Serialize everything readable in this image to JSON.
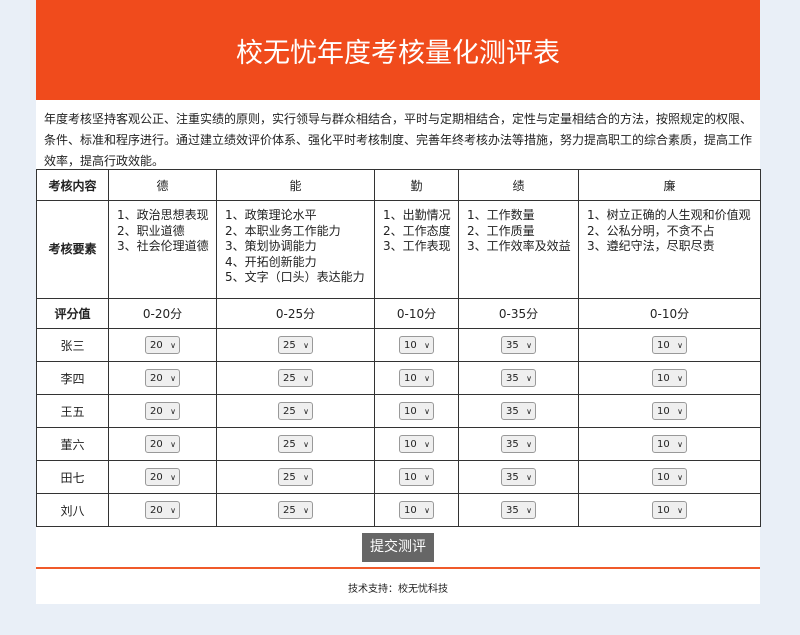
{
  "header": {
    "title": "校无忧年度考核量化测评表"
  },
  "intro": "年度考核坚持客观公正、注重实绩的原则，实行领导与群众相结合，平时与定期相结合，定性与定量相结合的方法，按照规定的权限、条件、标准和程序进行。通过建立绩效评价体系、强化平时考核制度、完善年终考核办法等措施，努力提高职工的综合素质，提高工作效率，提高行政效能。",
  "table": {
    "header_label": "考核内容",
    "columns": [
      "德",
      "能",
      "勤",
      "绩",
      "廉"
    ],
    "factors_label": "考核要素",
    "factors": [
      [
        "1、政治思想表现",
        "2、职业道德",
        "3、社会伦理道德"
      ],
      [
        "1、政策理论水平",
        "2、本职业务工作能力",
        "3、策划协调能力",
        "4、开拓创新能力",
        "5、文字（口头）表达能力"
      ],
      [
        "1、出勤情况",
        "2、工作态度",
        "3、工作表现"
      ],
      [
        "1、工作数量",
        "2、工作质量",
        "3、工作效率及效益"
      ],
      [
        "1、树立正确的人生观和价值观",
        "2、公私分明，不贪不占",
        "3、遵纪守法，尽职尽责"
      ]
    ],
    "score_label": "评分值",
    "score_ranges": [
      "0-20分",
      "0-25分",
      "0-10分",
      "0-35分",
      "0-10分"
    ],
    "people": [
      {
        "name": "张三",
        "scores": [
          "20",
          "25",
          "10",
          "35",
          "10"
        ]
      },
      {
        "name": "李四",
        "scores": [
          "20",
          "25",
          "10",
          "35",
          "10"
        ]
      },
      {
        "name": "王五",
        "scores": [
          "20",
          "25",
          "10",
          "35",
          "10"
        ]
      },
      {
        "name": "董六",
        "scores": [
          "20",
          "25",
          "10",
          "35",
          "10"
        ]
      },
      {
        "name": "田七",
        "scores": [
          "20",
          "25",
          "10",
          "35",
          "10"
        ]
      },
      {
        "name": "刘八",
        "scores": [
          "20",
          "25",
          "10",
          "35",
          "10"
        ]
      }
    ]
  },
  "submit_label": "提交测评",
  "footer": "技术支持：校无忧科技"
}
